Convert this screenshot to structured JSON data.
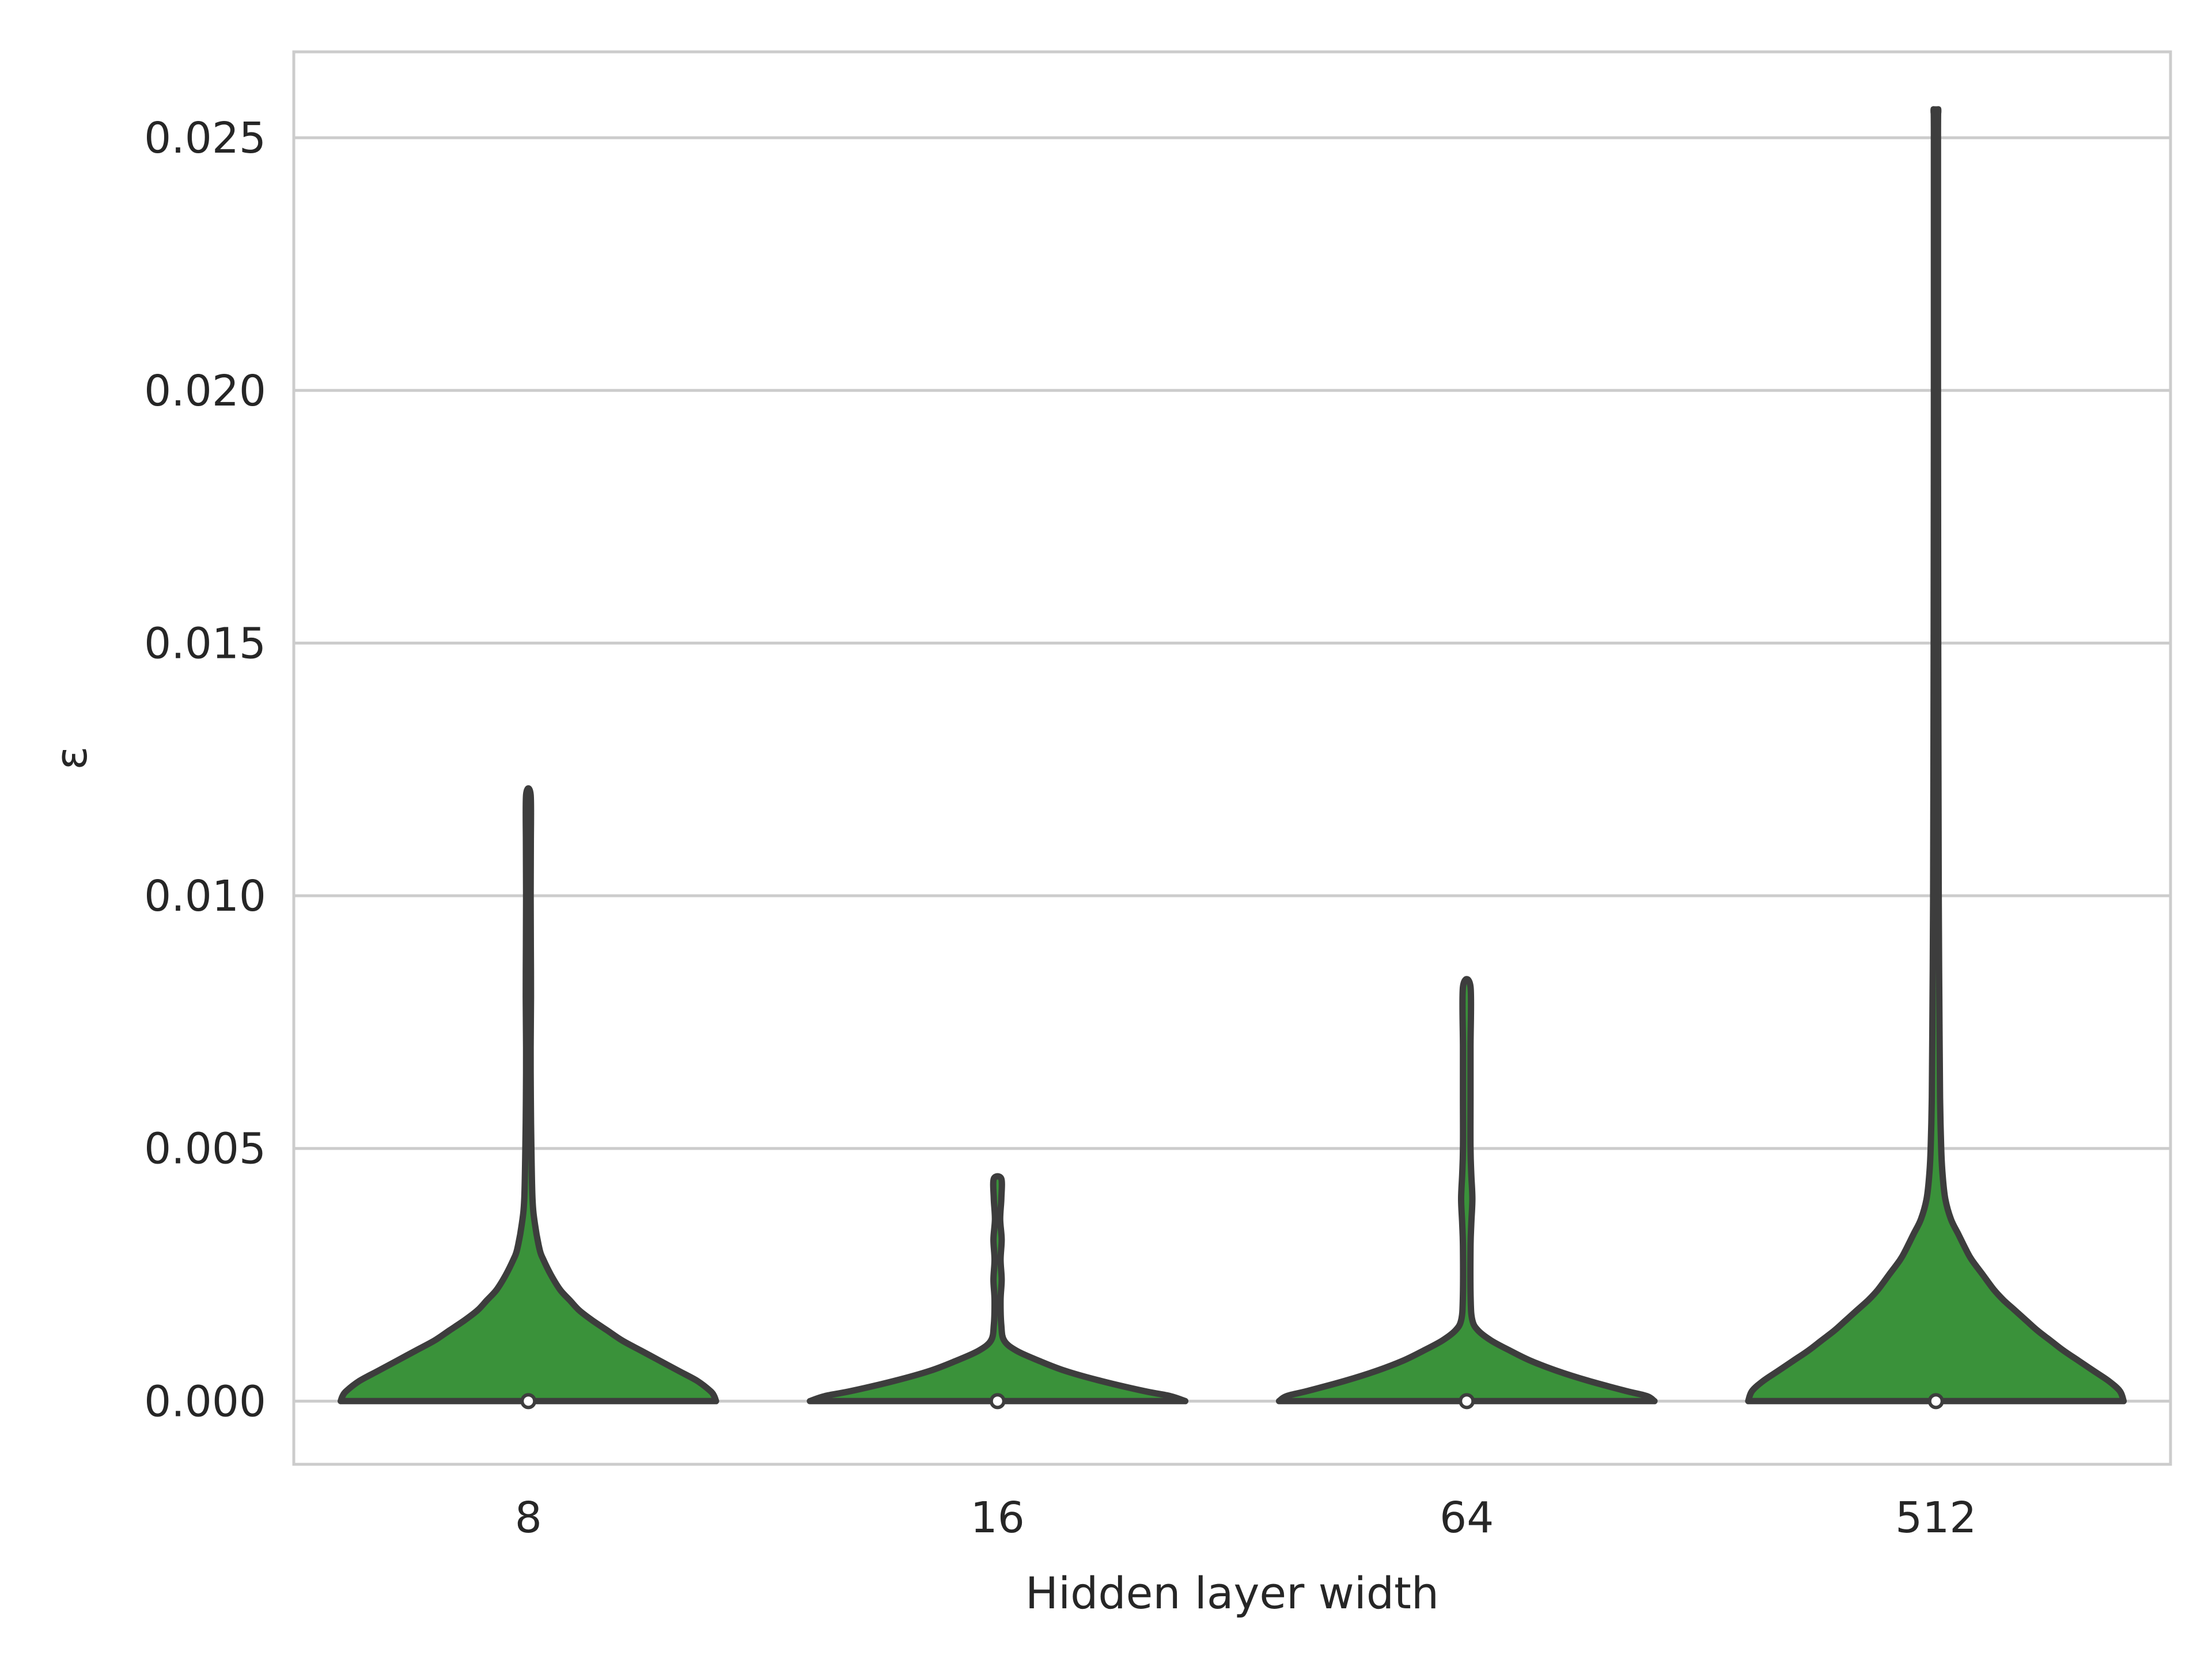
{
  "chart_data": {
    "type": "violin",
    "xlabel": "Hidden layer width",
    "ylabel": "ε",
    "ylim": [
      -0.00125,
      0.0267
    ],
    "yticks": [
      "0.000",
      "0.005",
      "0.010",
      "0.015",
      "0.020",
      "0.025"
    ],
    "ytick_values": [
      0,
      0.005,
      0.01,
      0.015,
      0.02,
      0.025
    ],
    "grid": "horizontal",
    "legend": "none",
    "fill_color": "#3a923a",
    "edge_color": "#3d3d3d",
    "categories": [
      "8",
      "16",
      "64",
      "512"
    ],
    "violins": [
      {
        "category": "8",
        "max": 0.012,
        "median": 0.0,
        "profile": [
          [
            0,
            1.0
          ],
          [
            0.0001,
            0.99
          ],
          [
            0.0002,
            0.97
          ],
          [
            0.0004,
            0.9
          ],
          [
            0.0006,
            0.8
          ],
          [
            0.0008,
            0.7
          ],
          [
            0.001,
            0.6
          ],
          [
            0.0012,
            0.5
          ],
          [
            0.0014,
            0.42
          ],
          [
            0.0016,
            0.34
          ],
          [
            0.0018,
            0.27
          ],
          [
            0.002,
            0.22
          ],
          [
            0.0022,
            0.17
          ],
          [
            0.0025,
            0.12
          ],
          [
            0.0028,
            0.08
          ],
          [
            0.003,
            0.06
          ],
          [
            0.0035,
            0.035
          ],
          [
            0.004,
            0.022
          ],
          [
            0.005,
            0.016
          ],
          [
            0.006,
            0.013
          ],
          [
            0.007,
            0.012
          ],
          [
            0.008,
            0.014
          ],
          [
            0.009,
            0.013
          ],
          [
            0.01,
            0.012
          ],
          [
            0.011,
            0.013
          ],
          [
            0.012,
            0.012
          ]
        ]
      },
      {
        "category": "16",
        "max": 0.0044,
        "median": 0.0,
        "profile": [
          [
            0,
            1.0
          ],
          [
            0.0001,
            0.92
          ],
          [
            0.0002,
            0.78
          ],
          [
            0.0004,
            0.55
          ],
          [
            0.0006,
            0.36
          ],
          [
            0.0008,
            0.22
          ],
          [
            0.001,
            0.1
          ],
          [
            0.0012,
            0.035
          ],
          [
            0.0015,
            0.02
          ],
          [
            0.002,
            0.016
          ],
          [
            0.0024,
            0.022
          ],
          [
            0.0028,
            0.016
          ],
          [
            0.0032,
            0.022
          ],
          [
            0.0036,
            0.014
          ],
          [
            0.004,
            0.02
          ],
          [
            0.0044,
            0.02
          ]
        ]
      },
      {
        "category": "64",
        "max": 0.0082,
        "median": 0.0,
        "profile": [
          [
            0,
            1.0
          ],
          [
            0.0001,
            0.96
          ],
          [
            0.0002,
            0.85
          ],
          [
            0.0004,
            0.65
          ],
          [
            0.0006,
            0.48
          ],
          [
            0.0008,
            0.34
          ],
          [
            0.001,
            0.23
          ],
          [
            0.0012,
            0.13
          ],
          [
            0.0014,
            0.06
          ],
          [
            0.0016,
            0.03
          ],
          [
            0.002,
            0.021
          ],
          [
            0.003,
            0.02
          ],
          [
            0.0035,
            0.024
          ],
          [
            0.004,
            0.03
          ],
          [
            0.0045,
            0.024
          ],
          [
            0.005,
            0.02
          ],
          [
            0.006,
            0.02
          ],
          [
            0.007,
            0.02
          ],
          [
            0.0082,
            0.02
          ]
        ]
      },
      {
        "category": "512",
        "max": 0.0255,
        "median": 0.0,
        "profile": [
          [
            0,
            1.0
          ],
          [
            0.0002,
            0.98
          ],
          [
            0.0004,
            0.92
          ],
          [
            0.0006,
            0.84
          ],
          [
            0.0008,
            0.76
          ],
          [
            0.001,
            0.68
          ],
          [
            0.0012,
            0.61
          ],
          [
            0.0014,
            0.54
          ],
          [
            0.0016,
            0.48
          ],
          [
            0.0018,
            0.42
          ],
          [
            0.002,
            0.36
          ],
          [
            0.0022,
            0.31
          ],
          [
            0.0025,
            0.25
          ],
          [
            0.0028,
            0.19
          ],
          [
            0.003,
            0.16
          ],
          [
            0.0033,
            0.12
          ],
          [
            0.0036,
            0.08
          ],
          [
            0.004,
            0.05
          ],
          [
            0.0045,
            0.035
          ],
          [
            0.005,
            0.028
          ],
          [
            0.006,
            0.022
          ],
          [
            0.008,
            0.018
          ],
          [
            0.01,
            0.015
          ],
          [
            0.015,
            0.012
          ],
          [
            0.02,
            0.011
          ],
          [
            0.025,
            0.011
          ],
          [
            0.0255,
            0.011
          ]
        ]
      }
    ]
  }
}
